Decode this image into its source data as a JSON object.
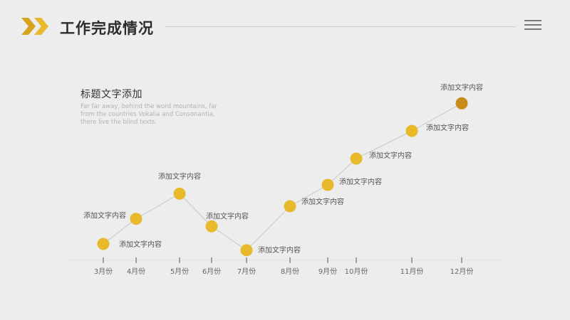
{
  "header": {
    "title": "工作完成情况"
  },
  "text_block": {
    "title": "标题文字添加",
    "body_lines": [
      "Far far away, behind the word mountains, far",
      "from the countries Vokalia and Consonantia,",
      "there live the blind texts."
    ]
  },
  "colors": {
    "accent": "#e8b92a",
    "accent_dark": "#c98b1a",
    "line": "#c8c8c8",
    "background": "#ededed"
  },
  "chart_data": {
    "type": "line",
    "categories": [
      "3月份",
      "4月份",
      "5月份",
      "6月份",
      "7月份",
      "8月份",
      "9月份",
      "10月份",
      "11月份",
      "12月份"
    ],
    "series": [
      {
        "values": [
          10,
          30,
          50,
          24,
          5,
          40,
          57,
          78,
          100,
          122
        ],
        "point_labels": [
          "添加文字内容",
          "添加文字内容",
          "添加文字内容",
          "添加文字内容",
          "添加文字内容",
          "添加文字内容",
          "添加文字内容",
          "添加文字内容",
          "添加文字内容",
          "添加文字内容"
        ]
      }
    ],
    "ylim": [
      0,
      125
    ],
    "grid": false,
    "highlight_last_point": true
  }
}
